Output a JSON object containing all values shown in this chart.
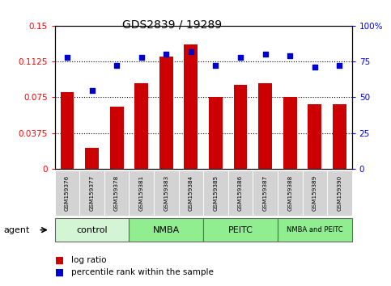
{
  "title": "GDS2839 / 19289",
  "samples": [
    "GSM159376",
    "GSM159377",
    "GSM159378",
    "GSM159381",
    "GSM159383",
    "GSM159384",
    "GSM159385",
    "GSM159386",
    "GSM159387",
    "GSM159388",
    "GSM159389",
    "GSM159390"
  ],
  "log_ratio": [
    0.08,
    0.022,
    0.065,
    0.09,
    0.118,
    0.13,
    0.075,
    0.088,
    0.09,
    0.075,
    0.068,
    0.068
  ],
  "percentile": [
    78,
    55,
    72,
    78,
    80,
    82,
    72,
    78,
    80,
    79,
    71,
    72
  ],
  "groups": [
    {
      "label": "control",
      "start": 0,
      "end": 3,
      "color": "#e0f5e0"
    },
    {
      "label": "NMBA",
      "start": 3,
      "end": 6,
      "color": "#90ee90"
    },
    {
      "label": "PEITC",
      "start": 6,
      "end": 9,
      "color": "#90ee90"
    },
    {
      "label": "NMBA and PEITC",
      "start": 9,
      "end": 12,
      "color": "#90ee90"
    }
  ],
  "bar_color": "#cc0000",
  "dot_color": "#0000cc",
  "ylim_left": [
    0,
    0.15
  ],
  "ylim_right": [
    0,
    100
  ],
  "yticks_left": [
    0,
    0.0375,
    0.075,
    0.1125,
    0.15
  ],
  "yticks_left_labels": [
    "0",
    "0.0375",
    "0.075",
    "0.1125",
    "0.15"
  ],
  "yticks_right": [
    0,
    25,
    50,
    75,
    100
  ],
  "yticks_right_labels": [
    "0",
    "25",
    "50",
    "75",
    "100%"
  ],
  "hlines": [
    0.0375,
    0.075,
    0.1125
  ],
  "legend_log_ratio": "log ratio",
  "legend_percentile": "percentile rank within the sample",
  "agent_label": "agent"
}
